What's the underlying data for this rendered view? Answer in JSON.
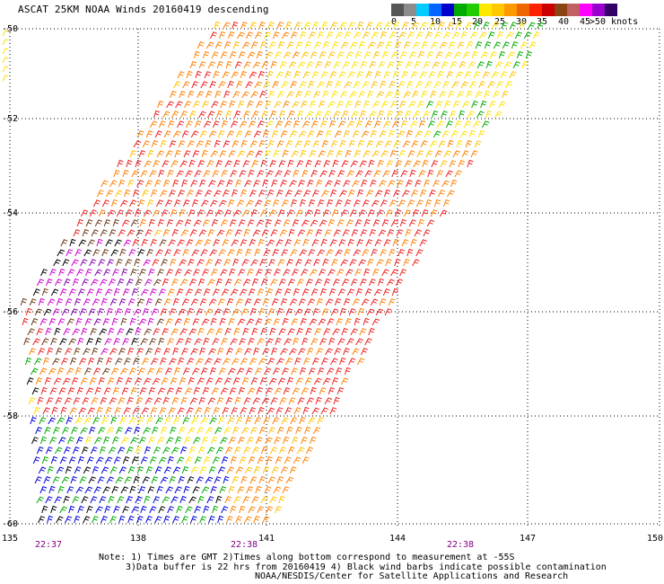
{
  "title": "ASCAT 25KM NOAA Winds 20160419 descending",
  "colorbar": {
    "labels": [
      "0",
      "5",
      "10",
      "15",
      "20",
      "25",
      "30",
      "35",
      "40",
      "45",
      ">50 knots"
    ],
    "colors": [
      "#555555",
      "#8c8c8c",
      "#00ccff",
      "#0066ff",
      "#0000cc",
      "#00aa00",
      "#22cc00",
      "#ffe800",
      "#ffc800",
      "#ff9900",
      "#ee6600",
      "#ff2200",
      "#cc0000",
      "#8b4513",
      "#c06060",
      "#ff00ff",
      "#9900cc",
      "#330066"
    ]
  },
  "axes": {
    "lat_labels": [
      "-50",
      "-52",
      "-54",
      "-56",
      "-58",
      "-60"
    ],
    "lon_labels": [
      "135",
      "138",
      "141",
      "144",
      "147",
      "150"
    ]
  },
  "times": [
    "22:37",
    "22:38",
    "22:38"
  ],
  "notes": {
    "line1": "Note: 1) Times are GMT 2)Times along bottom correspond to measurement at -55S",
    "line2": "3)Data buffer is 22 hrs from 20160419 4) Black wind barbs indicate possible contamination",
    "line3": "NOAA/NESDIS/Center for Satellite Applications and Research"
  },
  "wind_speed_colors": {
    "<10": "#000000",
    "10-15": "#0000dd",
    "15-20": "#00aa00",
    "20-25": "#ffe000",
    "25-30": "#ffc000",
    "30-35": "#ff8000",
    "35-40": "#ee2020",
    "40-45": "#6b3a1a",
    "45-50": "#cc00cc",
    ">50": "#8000aa"
  }
}
